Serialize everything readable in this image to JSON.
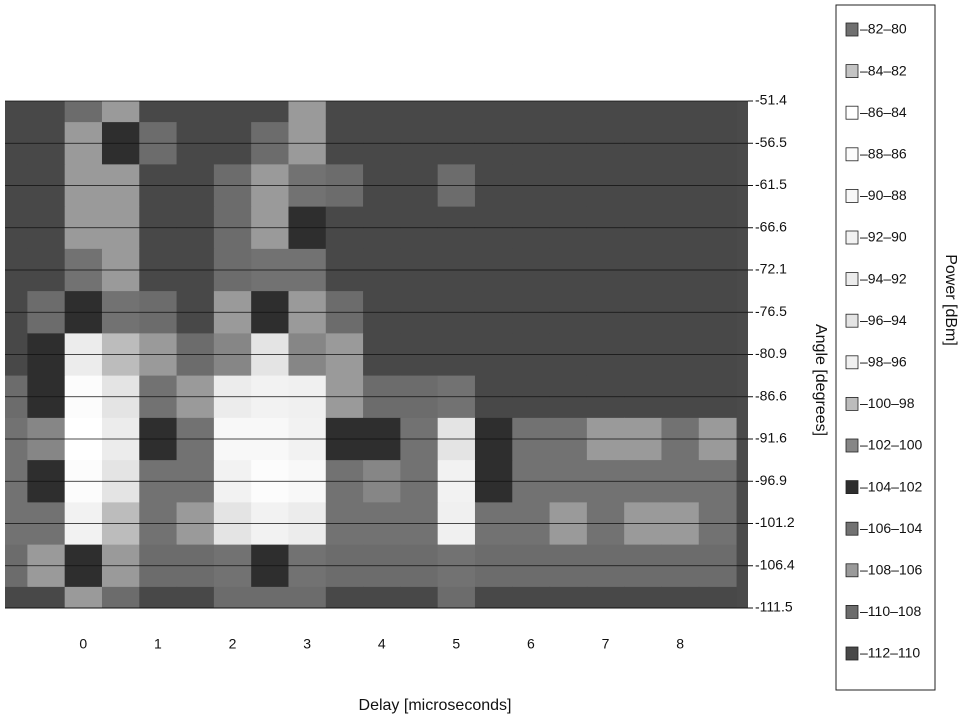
{
  "chart_data": {
    "type": "contour",
    "x_label": "Delay [microseconds]",
    "y_label": "Angle [degrees]",
    "legend_title": "Power [dBm]",
    "background": "#4a4a4a",
    "grid": true,
    "xlim": [
      -1.05,
      8.91
    ],
    "xticks": [
      0,
      1,
      2,
      3,
      4,
      5,
      6,
      7,
      8
    ],
    "x": [
      -1,
      -0.5,
      0,
      0.5,
      1,
      1.5,
      2,
      2.5,
      3,
      3.5,
      4,
      4.5,
      5,
      5.5,
      6,
      6.5,
      7,
      7.5,
      8,
      8.5
    ],
    "y": [
      -51.4,
      -56.5,
      -61.5,
      -66.6,
      -72.1,
      -76.5,
      -80.9,
      -86.6,
      -91.6,
      -96.9,
      -101.2,
      -106.4,
      -111.5
    ],
    "z": [
      [
        -111,
        -111,
        -109,
        -107,
        -111,
        -111,
        -111,
        -111,
        -108,
        -111,
        -111,
        -111,
        -111,
        -111,
        -111,
        -111,
        -111,
        -111,
        -111,
        -111
      ],
      [
        -111,
        -111,
        -107,
        -103,
        -110,
        -111,
        -111,
        -109,
        -107,
        -111,
        -111,
        -111,
        -111,
        -111,
        -111,
        -111,
        -111,
        -111,
        -111,
        -111
      ],
      [
        -111,
        -111,
        -108,
        -107,
        -111,
        -111,
        -110,
        -108,
        -105,
        -109,
        -111,
        -111,
        -109,
        -111,
        -111,
        -111,
        -111,
        -111,
        -111,
        -111
      ],
      [
        -111,
        -111,
        -107,
        -108,
        -111,
        -111,
        -109,
        -107,
        -103,
        -111,
        -111,
        -111,
        -111,
        -111,
        -111,
        -111,
        -111,
        -111,
        -111,
        -111
      ],
      [
        -111,
        -111,
        -106,
        -107,
        -111,
        -111,
        -109,
        -106,
        -106,
        -111,
        -111,
        -111,
        -111,
        -111,
        -111,
        -111,
        -111,
        -111,
        -111,
        -111
      ],
      [
        -111,
        -109,
        -103,
        -105,
        -109,
        -111,
        -107,
        -104,
        -107,
        -109,
        -111,
        -111,
        -111,
        -111,
        -111,
        -111,
        -111,
        -111,
        -111,
        -111
      ],
      [
        -111,
        -104,
        -93,
        -100,
        -107,
        -110,
        -102,
        -96,
        -101,
        -108,
        -111,
        -111,
        -111,
        -111,
        -111,
        -111,
        -111,
        -111,
        -111,
        -111
      ],
      [
        -109,
        -103,
        -88,
        -96,
        -106,
        -108,
        -94,
        -91,
        -98,
        -107,
        -109,
        -110,
        -106,
        -111,
        -111,
        -111,
        -111,
        -111,
        -111,
        -111
      ],
      [
        -106,
        -101,
        -86,
        -94,
        -104,
        -106,
        -90,
        -89,
        -92,
        -104,
        -103,
        -106,
        -95,
        -104,
        -106,
        -106,
        -107,
        -107,
        -106,
        -107
      ],
      [
        -105,
        -104,
        -87,
        -96,
        -105,
        -106,
        -91,
        -88,
        -90,
        -105,
        -102,
        -105,
        -92,
        -104,
        -105,
        -106,
        -106,
        -105,
        -106,
        -106
      ],
      [
        -106,
        -105,
        -92,
        -100,
        -106,
        -107,
        -96,
        -91,
        -93,
        -105,
        -106,
        -106,
        -97,
        -106,
        -106,
        -107,
        -106,
        -107,
        -107,
        -106
      ],
      [
        -109,
        -108,
        -104,
        -107,
        -109,
        -109,
        -106,
        -104,
        -106,
        -109,
        -109,
        -109,
        -106,
        -109,
        -109,
        -109,
        -109,
        -109,
        -109,
        -109
      ],
      [
        -111,
        -111,
        -108,
        -110,
        -111,
        -111,
        -110,
        -109,
        -110,
        -111,
        -111,
        -111,
        -110,
        -111,
        -111,
        -111,
        -111,
        -111,
        -111,
        -111
      ]
    ],
    "legend": [
      {
        "label": "–82–80",
        "min": -82,
        "max": -80,
        "color": "#707070"
      },
      {
        "label": "–84–82",
        "min": -84,
        "max": -82,
        "color": "#c4c4c4"
      },
      {
        "label": "–86–84",
        "min": -86,
        "max": -84,
        "color": "#ffffff"
      },
      {
        "label": "–88–86",
        "min": -88,
        "max": -86,
        "color": "#fcfcfc"
      },
      {
        "label": "–90–88",
        "min": -90,
        "max": -88,
        "color": "#f8f8f8"
      },
      {
        "label": "–92–90",
        "min": -92,
        "max": -90,
        "color": "#f2f2f2"
      },
      {
        "label": "–94–92",
        "min": -94,
        "max": -92,
        "color": "#ececec"
      },
      {
        "label": "–96–94",
        "min": -96,
        "max": -94,
        "color": "#e4e4e4"
      },
      {
        "label": "–98–96",
        "min": -98,
        "max": -96,
        "color": "#f0f0f0"
      },
      {
        "label": "–100–98",
        "min": -100,
        "max": -98,
        "color": "#bcbcbc"
      },
      {
        "label": "–102–100",
        "min": -102,
        "max": -100,
        "color": "#868686"
      },
      {
        "label": "–104–102",
        "min": -104,
        "max": -102,
        "color": "#2e2e2e"
      },
      {
        "label": "–106–104",
        "min": -106,
        "max": -104,
        "color": "#727272"
      },
      {
        "label": "–108–106",
        "min": -108,
        "max": -106,
        "color": "#9a9a9a"
      },
      {
        "label": "–110–108",
        "min": -110,
        "max": -108,
        "color": "#6c6c6c"
      },
      {
        "label": "–112–110",
        "min": -112,
        "max": -110,
        "color": "#484848"
      }
    ]
  }
}
